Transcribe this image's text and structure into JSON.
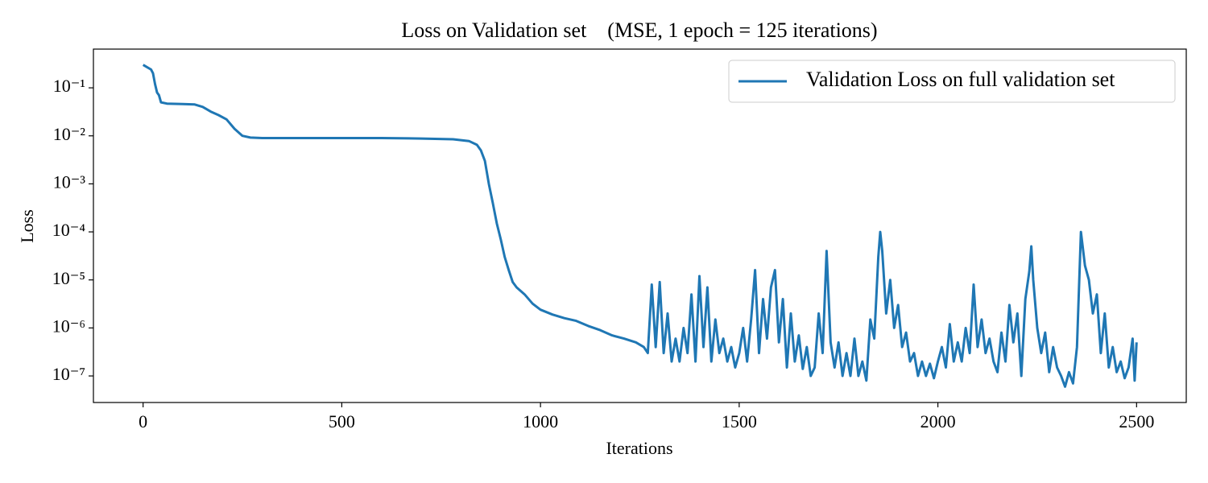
{
  "chart_data": {
    "type": "line",
    "title": "Loss on Validation set    (MSE, 1 epoch = 125 iterations)",
    "x_label": "Iterations",
    "y_label": "Loss",
    "log_y": true,
    "legend": "upper right",
    "xlim": [
      -125,
      2625
    ],
    "xticks": [
      0,
      500,
      1000,
      1500,
      2000,
      2500
    ],
    "ylim": [
      2.8e-08,
      0.64
    ],
    "yticks": [
      {
        "value": 1e-07,
        "label": "10⁻⁷"
      },
      {
        "value": 1e-06,
        "label": "10⁻⁶"
      },
      {
        "value": 1e-05,
        "label": "10⁻⁵"
      },
      {
        "value": 0.0001,
        "label": "10⁻⁴"
      },
      {
        "value": 0.001,
        "label": "10⁻³"
      },
      {
        "value": 0.01,
        "label": "10⁻²"
      },
      {
        "value": 0.1,
        "label": "10⁻¹"
      }
    ],
    "x": [
      0,
      10,
      20,
      25,
      30,
      35,
      40,
      45,
      60,
      100,
      130,
      150,
      170,
      190,
      210,
      230,
      250,
      270,
      300,
      400,
      500,
      600,
      700,
      780,
      820,
      840,
      850,
      860,
      870,
      880,
      890,
      900,
      910,
      920,
      930,
      940,
      960,
      980,
      1000,
      1030,
      1060,
      1090,
      1120,
      1150,
      1180,
      1210,
      1240,
      1260,
      1270,
      1280,
      1290,
      1300,
      1310,
      1320,
      1330,
      1340,
      1350,
      1360,
      1370,
      1380,
      1390,
      1400,
      1410,
      1420,
      1430,
      1440,
      1450,
      1460,
      1470,
      1480,
      1490,
      1500,
      1510,
      1520,
      1530,
      1540,
      1550,
      1560,
      1570,
      1580,
      1590,
      1600,
      1610,
      1620,
      1630,
      1640,
      1650,
      1660,
      1670,
      1680,
      1690,
      1700,
      1710,
      1720,
      1730,
      1740,
      1750,
      1760,
      1770,
      1780,
      1790,
      1800,
      1810,
      1820,
      1830,
      1840,
      1850,
      1855,
      1860,
      1870,
      1880,
      1890,
      1900,
      1910,
      1920,
      1930,
      1940,
      1950,
      1960,
      1970,
      1980,
      1990,
      2000,
      2010,
      2020,
      2030,
      2040,
      2050,
      2060,
      2070,
      2080,
      2090,
      2100,
      2110,
      2120,
      2130,
      2140,
      2150,
      2160,
      2170,
      2180,
      2190,
      2200,
      2210,
      2220,
      2230,
      2235,
      2240,
      2250,
      2260,
      2270,
      2280,
      2290,
      2300,
      2310,
      2320,
      2330,
      2340,
      2350,
      2360,
      2370,
      2380,
      2390,
      2400,
      2410,
      2420,
      2430,
      2440,
      2450,
      2460,
      2470,
      2480,
      2490,
      2495,
      2500
    ],
    "series": [
      {
        "name": "Validation Loss on full validation set",
        "color": "#1f77b4",
        "values": [
          0.3,
          0.27,
          0.24,
          0.2,
          0.12,
          0.08,
          0.07,
          0.05,
          0.047,
          0.046,
          0.045,
          0.04,
          0.032,
          0.027,
          0.022,
          0.014,
          0.01,
          0.0092,
          0.009,
          0.009,
          0.009,
          0.009,
          0.0088,
          0.0085,
          0.0078,
          0.0065,
          0.005,
          0.003,
          0.001,
          0.0004,
          0.00015,
          7e-05,
          3e-05,
          1.6e-05,
          9e-06,
          7e-06,
          5e-06,
          3.2e-06,
          2.4e-06,
          1.9e-06,
          1.6e-06,
          1.4e-06,
          1.1e-06,
          9e-07,
          7e-07,
          6e-07,
          5e-07,
          4e-07,
          3e-07,
          8e-06,
          4e-07,
          9e-06,
          3e-07,
          2e-06,
          2e-07,
          6e-07,
          2e-07,
          1e-06,
          3e-07,
          5e-06,
          2e-07,
          1.2e-05,
          4e-07,
          7e-06,
          2e-07,
          1.5e-06,
          3e-07,
          6e-07,
          2e-07,
          4e-07,
          1.5e-07,
          3e-07,
          1e-06,
          2e-07,
          1.5e-06,
          1.6e-05,
          3e-07,
          4e-06,
          6e-07,
          7e-06,
          1.6e-05,
          5e-07,
          4e-06,
          1.5e-07,
          2e-06,
          2e-07,
          7e-07,
          1.4e-07,
          4e-07,
          1e-07,
          1.5e-07,
          2e-06,
          3e-07,
          4e-05,
          5e-07,
          1.5e-07,
          5e-07,
          1e-07,
          3e-07,
          1e-07,
          6e-07,
          1e-07,
          2e-07,
          8e-08,
          1.5e-06,
          6e-07,
          3e-05,
          0.0001,
          4e-05,
          2e-06,
          1e-05,
          1e-06,
          3e-06,
          4e-07,
          8e-07,
          2e-07,
          3e-07,
          1e-07,
          2e-07,
          1e-07,
          1.8e-07,
          9e-08,
          2e-07,
          4e-07,
          1.5e-07,
          1.2e-06,
          2e-07,
          5e-07,
          2e-07,
          1e-06,
          3e-07,
          8e-06,
          4e-07,
          1.5e-06,
          3e-07,
          6e-07,
          2e-07,
          1.2e-07,
          8e-07,
          2e-07,
          3e-06,
          5e-07,
          2e-06,
          1e-07,
          4e-06,
          1.5e-05,
          5e-05,
          1e-05,
          1e-06,
          3e-07,
          8e-07,
          1.2e-07,
          4e-07,
          1.5e-07,
          1e-07,
          6e-08,
          1.2e-07,
          7e-08,
          4e-07,
          0.0001,
          2e-05,
          1e-05,
          2e-06,
          5e-06,
          3e-07,
          2e-06,
          1.5e-07,
          4e-07,
          1.2e-07,
          2e-07,
          9e-08,
          1.5e-07,
          6e-07,
          8e-08,
          5e-07
        ]
      }
    ]
  }
}
